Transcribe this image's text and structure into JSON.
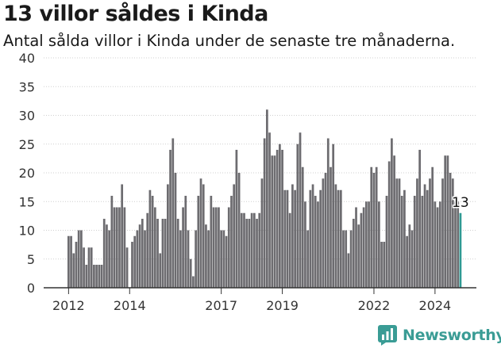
{
  "header": {
    "title": "13 villor såldes i Kinda",
    "subtitle": "Antal sålda villor i Kinda under de senaste tre månaderna."
  },
  "brand": {
    "name": "Newsworthy",
    "icon": "newsworthy-logo-icon"
  },
  "colors": {
    "bar": "#6d6c70",
    "highlight": "#2f9a93",
    "grid": "#cfcfcf",
    "axis": "#333333",
    "brand": "#3a9c95"
  },
  "chart_data": {
    "type": "bar",
    "title": "13 villor såldes i Kinda",
    "subtitle": "Antal sålda villor i Kinda under de senaste tre månaderna.",
    "xlabel": "",
    "ylabel": "",
    "ylim": [
      0,
      40
    ],
    "yticks": [
      0,
      5,
      10,
      15,
      20,
      25,
      30,
      35,
      40
    ],
    "grid": true,
    "legend": "none",
    "x_start": "2012-01",
    "x_interval": "month",
    "xtick_labels": [
      {
        "label": "2012",
        "index": 0
      },
      {
        "label": "2014",
        "index": 24
      },
      {
        "label": "2017",
        "index": 60
      },
      {
        "label": "2019",
        "index": 84
      },
      {
        "label": "2022",
        "index": 120
      },
      {
        "label": "2024",
        "index": 144
      }
    ],
    "values": [
      9,
      9,
      6,
      8,
      10,
      10,
      7,
      4,
      7,
      7,
      4,
      4,
      4,
      4,
      12,
      11,
      10,
      16,
      14,
      14,
      14,
      18,
      14,
      7,
      0,
      8,
      9,
      10,
      11,
      12,
      10,
      13,
      17,
      16,
      14,
      12,
      6,
      12,
      12,
      18,
      24,
      26,
      20,
      12,
      10,
      14,
      16,
      10,
      5,
      2,
      10,
      16,
      19,
      18,
      11,
      10,
      16,
      14,
      14,
      14,
      10,
      10,
      9,
      14,
      16,
      18,
      24,
      20,
      13,
      13,
      12,
      12,
      13,
      13,
      12,
      13,
      19,
      26,
      31,
      27,
      23,
      23,
      24,
      25,
      24,
      17,
      17,
      13,
      18,
      17,
      25,
      27,
      21,
      15,
      10,
      17,
      18,
      16,
      15,
      17,
      19,
      20,
      26,
      21,
      25,
      18,
      17,
      17,
      10,
      10,
      6,
      10,
      12,
      14,
      11,
      13,
      14,
      15,
      15,
      21,
      20,
      21,
      15,
      8,
      8,
      16,
      22,
      26,
      23,
      19,
      19,
      16,
      17,
      9,
      11,
      10,
      16,
      19,
      24,
      16,
      18,
      17,
      19,
      21,
      15,
      14,
      15,
      19,
      23,
      23,
      20,
      19,
      15,
      15,
      13
    ],
    "last_label": "13"
  }
}
